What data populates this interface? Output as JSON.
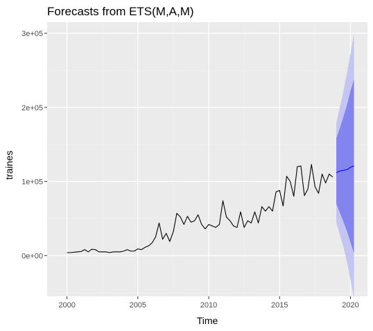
{
  "chart_data": {
    "type": "line",
    "title": "Forecasts from ETS(M,A,M)",
    "xlabel": "Time",
    "ylabel": "traines",
    "xlim": [
      1998.6,
      2021.2
    ],
    "ylim": [
      -55000,
      315000
    ],
    "x_ticks": [
      2000,
      2005,
      2010,
      2015,
      2020
    ],
    "x_tick_labels": [
      "2000",
      "2005",
      "2010",
      "2015",
      "2020"
    ],
    "y_ticks": [
      0,
      100000,
      200000,
      300000
    ],
    "y_tick_labels": [
      "0e+00",
      "1e+05",
      "2e+05",
      "3e+05"
    ],
    "grid": true,
    "legend": "none",
    "series": [
      {
        "role": "observed",
        "color": "#000000",
        "x": [
          2000.0,
          2000.25,
          2000.5,
          2000.75,
          2001.0,
          2001.25,
          2001.5,
          2001.75,
          2002.0,
          2002.25,
          2002.5,
          2002.75,
          2003.0,
          2003.25,
          2003.5,
          2003.75,
          2004.0,
          2004.25,
          2004.5,
          2004.75,
          2005.0,
          2005.25,
          2005.5,
          2005.75,
          2006.0,
          2006.25,
          2006.5,
          2006.75,
          2007.0,
          2007.25,
          2007.5,
          2007.75,
          2008.0,
          2008.25,
          2008.5,
          2008.75,
          2009.0,
          2009.25,
          2009.5,
          2009.75,
          2010.0,
          2010.25,
          2010.5,
          2010.75,
          2011.0,
          2011.25,
          2011.5,
          2011.75,
          2012.0,
          2012.25,
          2012.5,
          2012.75,
          2013.0,
          2013.25,
          2013.5,
          2013.75,
          2014.0,
          2014.25,
          2014.5,
          2014.75,
          2015.0,
          2015.25,
          2015.5,
          2015.75,
          2016.0,
          2016.25,
          2016.5,
          2016.75,
          2017.0,
          2017.25,
          2017.5,
          2017.75,
          2018.0,
          2018.25,
          2018.5,
          2018.75
        ],
        "values": [
          4000,
          4000,
          4500,
          5000,
          5500,
          8000,
          5000,
          8500,
          8000,
          5000,
          5000,
          5000,
          4000,
          5000,
          5000,
          5000,
          6000,
          8000,
          6000,
          6000,
          9000,
          8000,
          11000,
          13000,
          17000,
          25000,
          44000,
          22000,
          30000,
          19000,
          32000,
          57000,
          52000,
          42000,
          53000,
          45000,
          47000,
          55000,
          42000,
          36000,
          42000,
          40000,
          38000,
          42000,
          74000,
          52000,
          47000,
          40000,
          38000,
          59000,
          38000,
          47000,
          44000,
          59000,
          44000,
          66000,
          60000,
          66000,
          60000,
          86000,
          88000,
          67000,
          107000,
          100000,
          80000,
          120000,
          121000,
          81000,
          90000,
          123000,
          93000,
          84000,
          110000,
          98000,
          110000,
          106000
        ]
      },
      {
        "role": "forecast",
        "color": "#0000ff",
        "x": [
          2019.0,
          2019.25,
          2019.5,
          2019.75,
          2020.0,
          2020.25
        ],
        "values": [
          112000,
          114000,
          115000,
          116000,
          119000,
          121000
        ]
      }
    ],
    "intervals": [
      {
        "level": "95%",
        "color": "#c5c5f2",
        "x": [
          2019.0,
          2019.25,
          2019.5,
          2019.75,
          2020.0,
          2020.25
        ],
        "lower": [
          45000,
          28000,
          12000,
          -8000,
          -32000,
          -58000
        ],
        "upper": [
          178000,
          200000,
          222000,
          246000,
          272000,
          300000
        ]
      },
      {
        "level": "80%",
        "color": "#8484ef",
        "x": [
          2019.0,
          2019.25,
          2019.5,
          2019.75,
          2020.0,
          2020.25
        ],
        "lower": [
          70000,
          58000,
          46000,
          33000,
          18000,
          3000
        ],
        "upper": [
          158000,
          172000,
          187000,
          203000,
          222000,
          238000
        ]
      }
    ],
    "colors": {
      "panel_background": "#ebebeb",
      "grid_major": "#ffffff",
      "grid_minor": "#f2f2f2",
      "tick_text": "#4d4d4d"
    }
  }
}
